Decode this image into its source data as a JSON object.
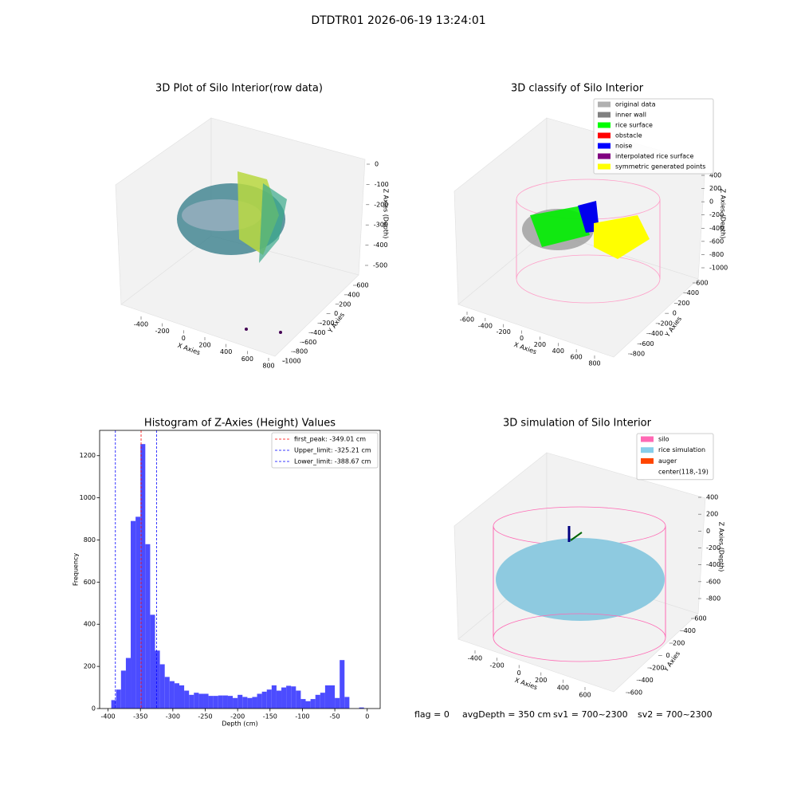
{
  "title": "DTDTR01 2026-06-19 13:24:01",
  "footer": [
    "flag = 0",
    "avgDepth = 350 cm",
    "sv1 = 700~2300",
    "sv2 = 700~2300"
  ],
  "chart_data": [
    {
      "type": "scatter3d",
      "title": "3D Plot of Silo Interior(row data)",
      "xlabel": "X Axies",
      "ylabel": "Y Axies",
      "zlabel": "Z Axies (Depth)",
      "xticks": [
        -400,
        -200,
        0,
        200,
        400,
        600,
        800
      ],
      "yticks": [
        600,
        400,
        200,
        0,
        -200,
        -400,
        -600,
        -800,
        -1000
      ],
      "zticks": [
        0,
        -100,
        -200,
        -300,
        -400,
        -500
      ]
    },
    {
      "type": "scatter3d",
      "title": "3D classify of Silo Interior",
      "xlabel": "X Axies",
      "ylabel": "Y Axies",
      "zlabel": "Z Axies (Depth)",
      "xticks": [
        -600,
        -400,
        -200,
        0,
        200,
        400,
        600,
        800
      ],
      "yticks": [
        600,
        400,
        200,
        0,
        -200,
        -400,
        -600,
        -800
      ],
      "zticks": [
        400,
        200,
        0,
        -200,
        -400,
        -600,
        -800,
        -1000
      ],
      "legend": [
        {
          "name": "original data",
          "color": "#b0b0b0"
        },
        {
          "name": "inner wall",
          "color": "#808080"
        },
        {
          "name": "rice surface",
          "color": "#00ff00"
        },
        {
          "name": "obstacle",
          "color": "#ff0000"
        },
        {
          "name": "noise",
          "color": "#0000ff"
        },
        {
          "name": "interpolated rice surface",
          "color": "#800080"
        },
        {
          "name": "symmetric generated points",
          "color": "#ffff00"
        }
      ]
    },
    {
      "type": "histogram",
      "title": "Histogram of Z-Axies (Height) Values",
      "xlabel": "Depth (cm)",
      "ylabel": "Frequency",
      "color": "#4c4cff",
      "bins": [
        -395,
        -387.5,
        -380,
        -372.5,
        -365,
        -357.5,
        -350,
        -342.5,
        -335,
        -327.5,
        -320,
        -312.5,
        -305,
        -297.5,
        -290,
        -282.5,
        -275,
        -267.5,
        -260,
        -252.5,
        -245,
        -237.5,
        -230,
        -222.5,
        -215,
        -207.5,
        -200,
        -192.5,
        -185,
        -177.5,
        -170,
        -162.5,
        -155,
        -147.5,
        -140,
        -132.5,
        -125,
        -117.5,
        -110,
        -102.5,
        -95,
        -87.5,
        -80,
        -72.5,
        -65,
        -57.5,
        -50,
        -42.5,
        -35,
        -27.5,
        -20,
        -12.5,
        -5
      ],
      "values": [
        40,
        90,
        180,
        240,
        890,
        910,
        1255,
        780,
        445,
        275,
        210,
        150,
        130,
        120,
        110,
        85,
        65,
        75,
        70,
        70,
        60,
        60,
        62,
        62,
        60,
        50,
        65,
        55,
        50,
        55,
        70,
        80,
        90,
        110,
        85,
        100,
        108,
        105,
        85,
        45,
        35,
        45,
        65,
        75,
        110,
        110,
        50,
        230,
        55,
        0,
        0,
        5
      ],
      "xlim": [
        -413,
        20
      ],
      "ylim": [
        0,
        1320
      ],
      "xticks": [
        -400,
        -350,
        -300,
        -250,
        -200,
        -150,
        -100,
        -50,
        0
      ],
      "yticks": [
        0,
        200,
        400,
        600,
        800,
        1000,
        1200
      ],
      "vlines": [
        {
          "name": "first_peak: -349.01 cm",
          "value": -349.01,
          "color": "#ff0000"
        },
        {
          "name": "Upper_limit: -325.21 cm",
          "value": -325.21,
          "color": "#0000ff"
        },
        {
          "name": "Lower_limit: -388.67 cm",
          "value": -388.67,
          "color": "#0000ff"
        }
      ]
    },
    {
      "type": "surface3d",
      "title": "3D simulation of Silo Interior",
      "xlabel": "X Axies",
      "ylabel": "Y Axies",
      "zlabel": "Z Axies (Depth)",
      "xticks": [
        -400,
        -200,
        0,
        200,
        400,
        600
      ],
      "yticks": [
        600,
        400,
        200,
        0,
        -200,
        -400,
        -600
      ],
      "zticks": [
        400,
        200,
        0,
        -200,
        -400,
        -600,
        -800
      ],
      "legend": [
        {
          "name": "silo",
          "color": "#ff69b4"
        },
        {
          "name": "rice simulation",
          "color": "#87ceeb"
        },
        {
          "name": "auger",
          "color": "#ff4500"
        },
        {
          "name": "center(118,-19)",
          "color": "none"
        }
      ]
    }
  ]
}
